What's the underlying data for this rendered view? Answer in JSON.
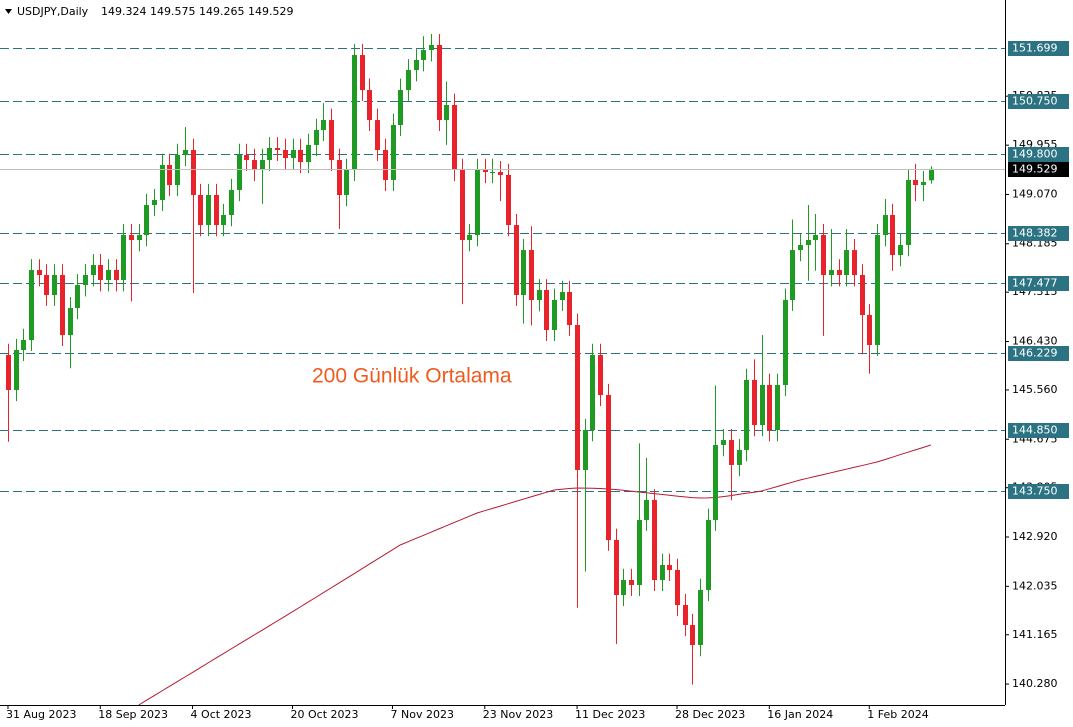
{
  "chart_data": {
    "type": "candlestick",
    "title": "USDJPY,Daily",
    "annotation": "200 Günlük Ortalama",
    "categories": [
      "31 Aug 2023",
      null,
      null,
      null,
      null,
      null,
      null,
      null,
      null,
      null,
      null,
      null,
      "18 Sep 2023",
      null,
      null,
      null,
      null,
      null,
      null,
      null,
      null,
      null,
      null,
      null,
      "4 Oct 2023",
      null,
      null,
      null,
      null,
      null,
      null,
      null,
      null,
      null,
      null,
      null,
      null,
      "20 Oct 2023",
      null,
      null,
      null,
      null,
      null,
      null,
      null,
      null,
      null,
      null,
      null,
      null,
      "7 Nov 2023",
      null,
      null,
      null,
      null,
      null,
      null,
      null,
      null,
      null,
      null,
      null,
      "23 Nov 2023",
      null,
      null,
      null,
      null,
      null,
      null,
      null,
      null,
      null,
      null,
      null,
      "11 Dec 2023",
      null,
      null,
      null,
      null,
      null,
      null,
      null,
      null,
      null,
      null,
      null,
      null,
      "28 Dec 2023",
      null,
      null,
      null,
      null,
      null,
      null,
      null,
      null,
      null,
      null,
      null,
      "16 Jan 2024",
      null,
      null,
      null,
      null,
      null,
      null,
      null,
      null,
      null,
      null,
      null,
      null,
      "1 Feb 2024",
      null,
      null,
      null,
      null,
      null,
      null,
      null,
      null
    ],
    "open": [
      146.187,
      145.559,
      146.277,
      146.457,
      147.713,
      147.624,
      147.265,
      147.624,
      146.546,
      147.031,
      147.444,
      147.624,
      147.803,
      147.534,
      147.713,
      147.534,
      148.342,
      148.252,
      148.342,
      148.88,
      148.97,
      149.599,
      149.239,
      149.778,
      149.868,
      149.06,
      148.521,
      149.06,
      148.521,
      148.701,
      149.15,
      149.778,
      149.688,
      149.509,
      149.688,
      149.904,
      149.868,
      149.724,
      149.868,
      149.652,
      149.958,
      150.227,
      150.406,
      149.688,
      149.06,
      149.509,
      151.573,
      150.945,
      150.406,
      149.868,
      149.329,
      150.317,
      150.945,
      151.304,
      151.484,
      151.663,
      151.753,
      150.406,
      150.676,
      149.509,
      148.252,
      148.342,
      149.509,
      149.473,
      149.473,
      149.419,
      148.521,
      147.265,
      148.072,
      147.175,
      147.354,
      146.636,
      147.175,
      147.318,
      146.726,
      144.123,
      144.841,
      146.187,
      145.469,
      142.866,
      141.879,
      142.148,
      142.058,
      143.225,
      143.584,
      142.148,
      142.417,
      142.328,
      141.699,
      141.34,
      140.981,
      141.968,
      143.225,
      144.572,
      144.661,
      144.213,
      144.482,
      145.739,
      144.931,
      145.649,
      144.841,
      145.649,
      147.175,
      148.072,
      148.162,
      148.252,
      148.342,
      147.624,
      147.713,
      147.624,
      148.072,
      147.624,
      146.906,
      146.367,
      148.342,
      148.701,
      147.983,
      148.162,
      149.329,
      149.239,
      149.324
    ],
    "high": [
      146.39,
      146.48,
      146.66,
      147.91,
      147.91,
      147.82,
      147.82,
      147.82,
      147.23,
      147.64,
      147.82,
      148.0,
      148.0,
      147.91,
      147.91,
      148.54,
      148.54,
      148.54,
      149.08,
      149.17,
      149.8,
      149.8,
      149.98,
      150.28,
      150.07,
      149.26,
      149.26,
      149.26,
      148.9,
      149.35,
      149.98,
      149.98,
      149.89,
      149.89,
      150.1,
      150.1,
      150.07,
      150.07,
      150.07,
      150.16,
      150.43,
      150.71,
      150.61,
      149.89,
      149.71,
      151.77,
      151.77,
      151.15,
      150.61,
      150.07,
      150.52,
      151.15,
      151.5,
      151.68,
      151.91,
      151.95,
      151.95,
      151.1,
      150.88,
      149.71,
      148.54,
      149.71,
      149.71,
      149.71,
      149.67,
      149.62,
      148.72,
      148.27,
      148.5,
      147.55,
      147.55,
      147.38,
      147.52,
      147.52,
      146.93,
      145.04,
      146.39,
      146.39,
      145.67,
      143.07,
      142.35,
      142.35,
      144.6,
      144.34,
      143.78,
      142.62,
      142.62,
      142.53,
      141.9,
      141.54,
      142.17,
      143.43,
      145.64,
      144.86,
      144.86,
      144.68,
      145.94,
      146.11,
      146.55,
      145.85,
      145.85,
      147.38,
      148.62,
      148.36,
      148.88,
      148.72,
      148.54,
      148.45,
      147.91,
      148.45,
      148.27,
      147.82,
      147.1,
      148.54,
      148.99,
      148.9,
      148.36,
      149.53,
      149.62,
      149.49,
      149.575
    ],
    "low": [
      144.63,
      145.36,
      146.08,
      146.26,
      147.42,
      147.07,
      147.07,
      146.35,
      145.95,
      146.83,
      147.24,
      147.42,
      147.33,
      147.33,
      147.33,
      147.33,
      147.15,
      148.05,
      148.14,
      148.68,
      148.77,
      149.04,
      149.04,
      149.58,
      147.3,
      148.32,
      148.32,
      148.32,
      148.32,
      148.5,
      148.95,
      149.49,
      149.31,
      148.9,
      149.49,
      149.67,
      149.52,
      149.52,
      149.45,
      149.45,
      149.76,
      150.03,
      149.49,
      148.45,
      148.86,
      149.31,
      150.75,
      150.21,
      149.67,
      149.13,
      149.13,
      150.12,
      150.75,
      151.1,
      151.28,
      151.46,
      150.21,
      149.96,
      149.31,
      147.1,
      148.05,
      148.14,
      149.27,
      149.27,
      148.95,
      148.32,
      147.07,
      146.75,
      146.72,
      146.97,
      146.44,
      146.44,
      146.98,
      146.53,
      141.65,
      142.3,
      144.64,
      145.27,
      142.67,
      141.0,
      141.68,
      141.86,
      141.86,
      143.03,
      141.95,
      141.95,
      142.13,
      141.5,
      141.14,
      140.27,
      140.78,
      141.77,
      143.03,
      144.37,
      143.58,
      144.01,
      144.28,
      144.73,
      144.73,
      144.64,
      144.64,
      145.45,
      146.98,
      147.87,
      147.52,
      147.7,
      146.53,
      147.42,
      147.42,
      147.42,
      147.42,
      146.2,
      145.85,
      146.17,
      148.14,
      147.7,
      147.78,
      147.96,
      148.95,
      148.95,
      149.265
    ],
    "close": [
      145.559,
      146.277,
      146.457,
      147.713,
      147.624,
      147.265,
      147.624,
      146.546,
      147.031,
      147.444,
      147.624,
      147.803,
      147.534,
      147.713,
      147.534,
      148.342,
      148.252,
      148.342,
      148.88,
      148.97,
      149.599,
      149.239,
      149.778,
      149.868,
      149.06,
      148.521,
      149.06,
      148.521,
      148.701,
      149.15,
      149.778,
      149.688,
      149.509,
      149.688,
      149.904,
      149.868,
      149.724,
      149.868,
      149.652,
      149.958,
      150.227,
      150.406,
      149.688,
      149.06,
      149.509,
      151.573,
      150.945,
      150.406,
      149.868,
      149.329,
      150.317,
      150.945,
      151.304,
      151.484,
      151.663,
      151.753,
      150.406,
      150.676,
      149.509,
      148.252,
      148.342,
      149.509,
      149.473,
      149.473,
      149.419,
      148.521,
      147.265,
      148.072,
      147.175,
      147.354,
      146.636,
      147.175,
      147.318,
      146.726,
      144.123,
      144.841,
      146.187,
      145.469,
      142.866,
      141.879,
      142.148,
      142.058,
      143.225,
      143.584,
      142.148,
      142.417,
      142.328,
      141.699,
      141.34,
      140.981,
      141.968,
      143.225,
      144.572,
      144.661,
      144.213,
      144.482,
      145.739,
      144.931,
      145.649,
      144.841,
      145.649,
      147.175,
      148.072,
      148.162,
      148.252,
      148.342,
      147.624,
      147.713,
      147.624,
      148.072,
      147.624,
      146.906,
      146.367,
      148.342,
      148.701,
      147.983,
      148.162,
      149.329,
      149.239,
      149.293,
      149.529
    ],
    "up_color": "#1f9a22",
    "down_color": "#e8232b",
    "moving_average": {
      "color": "#b8182f",
      "values": [
        null,
        null,
        null,
        null,
        null,
        null,
        null,
        null,
        null,
        null,
        null,
        null,
        null,
        null,
        null,
        null,
        null,
        139.904,
        139.988,
        140.071,
        140.155,
        140.239,
        140.323,
        140.407,
        140.49,
        140.574,
        140.658,
        140.742,
        140.825,
        140.909,
        140.993,
        141.077,
        141.16,
        141.244,
        141.328,
        141.412,
        141.495,
        141.579,
        141.663,
        141.749,
        141.834,
        141.92,
        142.005,
        142.091,
        142.177,
        142.262,
        142.348,
        142.434,
        142.519,
        142.605,
        142.69,
        142.776,
        142.834,
        142.891,
        142.949,
        143.006,
        143.064,
        143.121,
        143.179,
        143.236,
        143.294,
        143.351,
        143.392,
        143.434,
        143.475,
        143.516,
        143.558,
        143.599,
        143.64,
        143.682,
        143.723,
        143.764,
        143.778,
        143.79,
        143.8,
        143.798,
        143.795,
        143.79,
        143.782,
        143.773,
        143.76,
        143.745,
        143.728,
        143.713,
        143.7,
        143.685,
        143.67,
        143.655,
        143.64,
        143.628,
        143.62,
        143.622,
        143.63,
        143.645,
        143.663,
        143.685,
        143.705,
        143.725,
        143.746,
        143.785,
        143.825,
        143.865,
        143.904,
        143.943,
        143.975,
        144.008,
        144.04,
        144.072,
        144.105,
        144.137,
        144.169,
        144.201,
        144.234,
        144.266,
        144.31,
        144.353,
        144.397,
        144.44,
        144.484,
        144.527,
        144.571
      ]
    },
    "levels": [
      151.699,
      {
        "value": 150.75,
        "label": "150.750"
      },
      {
        "value": 149.8,
        "label": "149.800"
      },
      148.382,
      147.477,
      146.229,
      {
        "value": 144.85,
        "label": "144.850"
      },
      {
        "value": 143.75,
        "label": "143.750"
      }
    ],
    "level_color": "#2b7382",
    "current_price_color": "#000000",
    "ylim": [
      139.904,
      152.561
    ],
    "yticks": [
      {
        "value": 140.28,
        "label": "140.280"
      },
      141.165,
      142.035,
      {
        "value": 142.92,
        "label": "142.920"
      },
      143.805,
      144.675,
      {
        "value": 145.56,
        "label": "145.560"
      },
      {
        "value": 146.43,
        "label": "146.430"
      },
      147.315,
      148.185,
      {
        "value": 149.07,
        "label": "149.070"
      },
      149.955,
      150.835
    ],
    "grid": false
  }
}
